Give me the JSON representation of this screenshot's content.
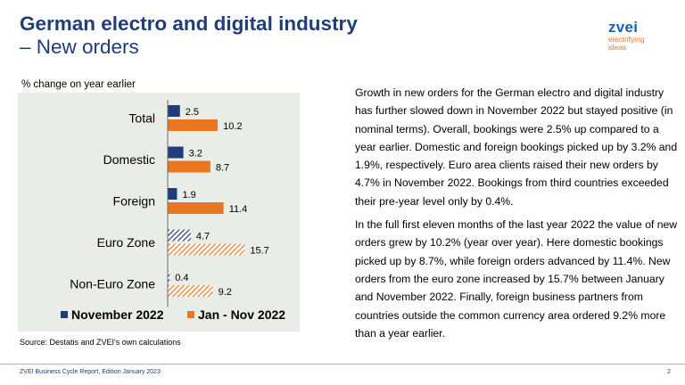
{
  "header": {
    "title_line1": "German electro and digital industry",
    "title_line2": "– New orders"
  },
  "logo": {
    "brand": "zvei",
    "tagline_line1": "electrifying",
    "tagline_line2": "ideas"
  },
  "chart_data": {
    "type": "bar",
    "orientation": "horizontal",
    "subtitle": "% change on year earlier",
    "categories": [
      "Total",
      "Domestic",
      "Foreign",
      "Euro Zone",
      "Non-Euro Zone"
    ],
    "series": [
      {
        "name": "November 2022",
        "values": [
          2.5,
          3.2,
          1.9,
          4.7,
          0.4
        ],
        "color": "#1f3d7a",
        "hatched_categories": [
          "Euro Zone",
          "Non-Euro Zone"
        ]
      },
      {
        "name": "Jan - Nov 2022",
        "values": [
          10.2,
          8.7,
          11.4,
          15.7,
          9.2
        ],
        "color": "#e87722",
        "hatched_categories": [
          "Euro Zone",
          "Non-Euro Zone"
        ]
      }
    ],
    "value_labels": [
      [
        "2.5",
        "3.2",
        "1.9",
        "4.7",
        "0.4"
      ],
      [
        "10.2",
        "8.7",
        "11.4",
        "15.7",
        "9.2"
      ]
    ],
    "xlim": [
      0,
      20
    ],
    "grid": false,
    "legend_position": "bottom",
    "background": "#e9ece7"
  },
  "source": "Source: Destatis and ZVEI's own calculations",
  "body_text": {
    "paragraph1": "Growth in new orders for the German electro and digital industry has further slowed down in November 2022 but stayed positive (in nominal terms). Overall, bookings were 2.5% up compared to a year earlier. Domestic and foreign bookings picked up by 3.2% and 1.9%, respectively. Euro area clients raised their new orders by 4.7% in November 2022. Bookings from third countries exceeded their pre-year level only by 0.4%.",
    "paragraph2": "In the full first eleven months of the last year 2022 the value of new orders grew by 10.2% (year over year). Here domestic bookings picked up by 8.7%, while foreign orders advanced by 11.4%. New orders from the euro zone increased by 15.7% between January and November 2022. Finally, foreign business partners from countries outside the common currency area ordered 9.2% more than a year earlier."
  },
  "footer": {
    "left": "ZVEI Business Cycle Report, Edition January 2023",
    "page": "2"
  }
}
